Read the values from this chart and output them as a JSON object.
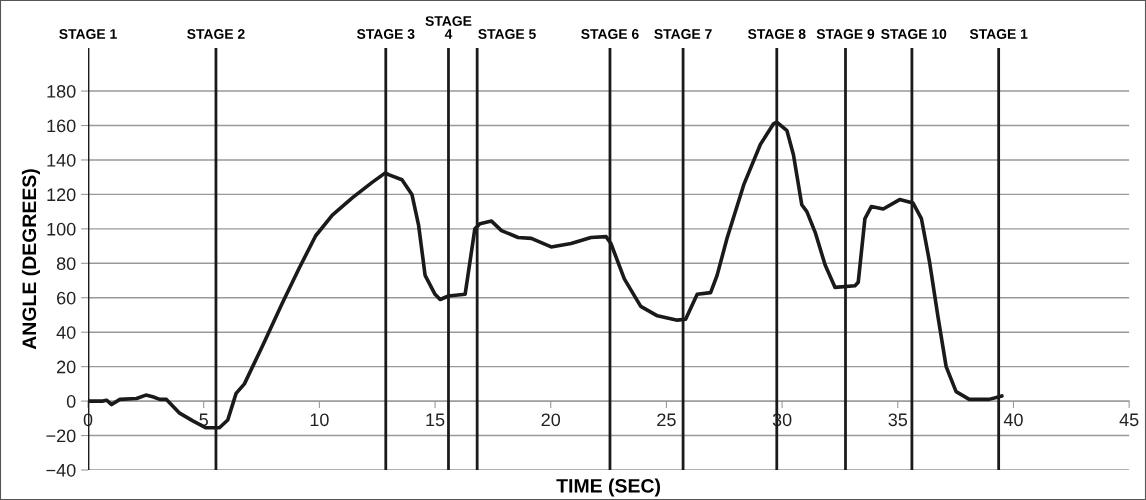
{
  "chart_data": {
    "type": "line",
    "xlabel": "TIME (SEC)",
    "ylabel": "ANGLE (DEGREES)",
    "xlim": [
      0,
      45
    ],
    "xticks": [
      0,
      5,
      10,
      15,
      20,
      25,
      30,
      35,
      40,
      45
    ],
    "ylim": [
      -40,
      205
    ],
    "yticks": [
      -40,
      -20,
      0,
      20,
      40,
      60,
      80,
      100,
      120,
      140,
      160,
      180
    ],
    "grid": "y",
    "marker": "none",
    "line_style": "solid",
    "series": [
      {
        "color": "#1a1a1a",
        "x": [
          0,
          0.65,
          0.8,
          1.02,
          1.38,
          2.1,
          2.5,
          2.8,
          3.1,
          3.39,
          3.96,
          4.53,
          5.1,
          5.68,
          6.04,
          6.4,
          6.76,
          7.54,
          8.4,
          9.12,
          9.84,
          10.56,
          11.42,
          12.28,
          12.85,
          12.99,
          13.57,
          14.0,
          14.29,
          14.57,
          15.0,
          15.22,
          15.58,
          16.3,
          16.72,
          16.94,
          17.44,
          17.87,
          18.59,
          19.16,
          20.02,
          20.88,
          21.74,
          22.39,
          22.6,
          23.18,
          23.89,
          24.61,
          25.47,
          25.83,
          26.33,
          26.91,
          27.19,
          27.62,
          28.34,
          29.06,
          29.63,
          29.77,
          30.21,
          30.49,
          30.85,
          31.07,
          31.43,
          31.86,
          32.29,
          33.15,
          33.29,
          33.58,
          33.86,
          34.37,
          35.08,
          35.66,
          36.02,
          36.37,
          36.73,
          37.09,
          37.52,
          38.09,
          38.95,
          39.5
        ],
        "values": [
          0,
          0,
          0.5,
          -2,
          1,
          1.5,
          3.5,
          2.5,
          1,
          1,
          -7,
          -11.5,
          -15.5,
          -15.5,
          -11,
          4.5,
          10,
          32,
          57,
          77,
          96,
          108,
          118,
          127,
          132.5,
          131.5,
          128.5,
          120,
          102,
          73,
          62,
          59,
          61,
          62,
          100,
          103,
          104.5,
          99,
          95,
          94.5,
          89.5,
          91.5,
          95,
          95.5,
          91.5,
          71,
          55,
          49.5,
          47,
          47.5,
          62,
          63,
          73,
          94.5,
          125.5,
          149,
          161,
          162,
          157,
          143,
          114,
          110,
          98,
          79,
          66,
          67,
          69,
          106,
          113,
          111.5,
          117,
          115,
          106,
          81,
          49.5,
          20,
          5.5,
          1,
          1,
          3
        ]
      }
    ],
    "ref_lines": [
      {
        "axis": "x",
        "value": 0,
        "label": "STAGE 1"
      },
      {
        "axis": "x",
        "value": 5.53,
        "label": "STAGE 2"
      },
      {
        "axis": "x",
        "value": 12.87,
        "label": "STAGE 3"
      },
      {
        "axis": "x",
        "value": 15.58,
        "label": "STAGE\n4"
      },
      {
        "axis": "x",
        "value": 16.82,
        "label": "STAGE 5"
      },
      {
        "axis": "x",
        "value": 22.56,
        "label": "STAGE 6"
      },
      {
        "axis": "x",
        "value": 25.72,
        "label": "STAGE 7"
      },
      {
        "axis": "x",
        "value": 29.77,
        "label": "STAGE 8"
      },
      {
        "axis": "x",
        "value": 32.74,
        "label": "STAGE 9"
      },
      {
        "axis": "x",
        "value": 35.61,
        "label": "STAGE 10"
      },
      {
        "axis": "x",
        "value": 39.36,
        "label": "STAGE 1"
      }
    ]
  }
}
